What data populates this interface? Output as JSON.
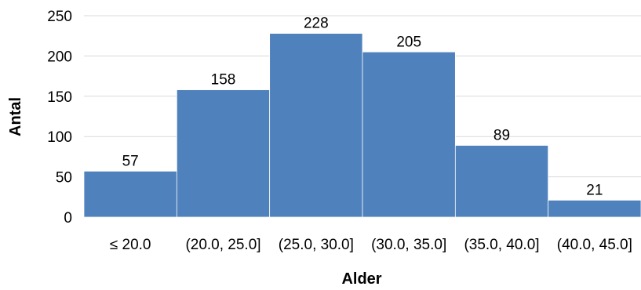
{
  "chart_data": {
    "type": "bar",
    "categories": [
      "≤ 20.0",
      "(20.0, 25.0]",
      "(25.0, 30.0]",
      "(30.0, 35.0]",
      "(35.0, 40.0]",
      "(40.0, 45.0]"
    ],
    "values": [
      57,
      158,
      228,
      205,
      89,
      21
    ],
    "title": "",
    "xlabel": "Alder",
    "ylabel": "Antal",
    "ylim": [
      0,
      250
    ],
    "yticks": [
      0,
      50,
      100,
      150,
      200,
      250
    ],
    "grid": true,
    "legend": "none",
    "bar_color": "#4f81bd",
    "bar_border_color": "#ffffff",
    "grid_color": "#d9d9d9",
    "axis_color": "#bfbfbf",
    "data_labels": true
  }
}
